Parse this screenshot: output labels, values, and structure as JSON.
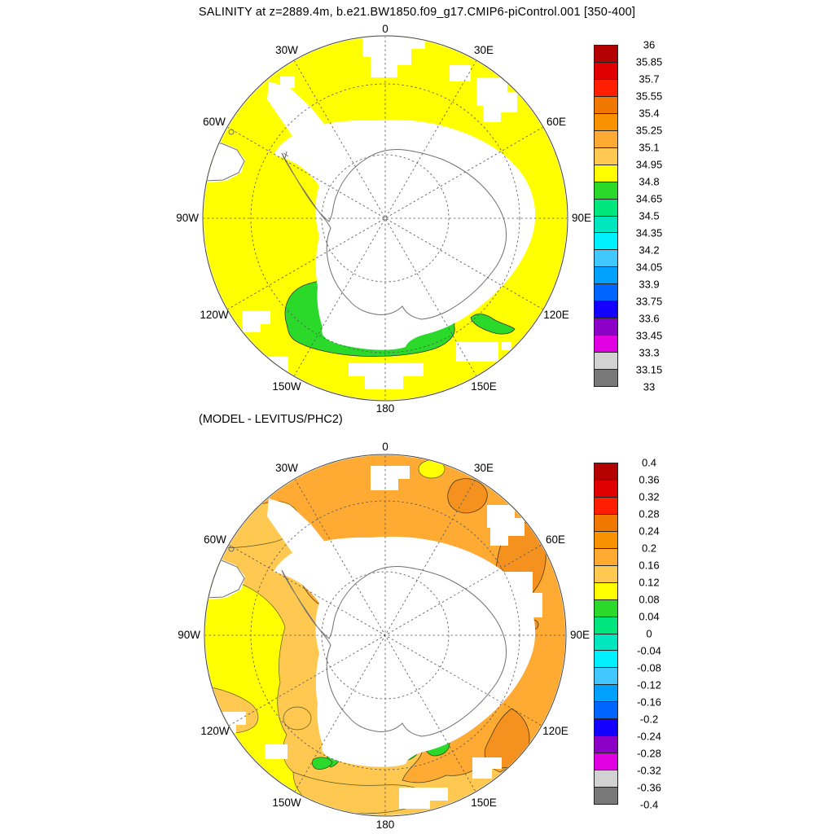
{
  "lon_labels": [
    "0",
    "30E",
    "60E",
    "90E",
    "120E",
    "150E",
    "180",
    "150W",
    "120W",
    "90W",
    "60W",
    "30W"
  ],
  "top_panel": {
    "title": "SALINITY at z=2889.4m, b.e21.BW1850.f09_g17.CMIP6-piControl.001 [350-400]",
    "colorbar": {
      "labels": [
        "36",
        "35.85",
        "35.7",
        "35.55",
        "35.4",
        "35.25",
        "35.1",
        "34.95",
        "34.8",
        "34.65",
        "34.5",
        "34.35",
        "34.2",
        "34.05",
        "33.9",
        "33.75",
        "33.6",
        "33.45",
        "33.3",
        "33.15",
        "33"
      ],
      "colors": [
        "#B40000",
        "#E10000",
        "#FF1E00",
        "#F07800",
        "#FA9100",
        "#FFAA32",
        "#FFC850",
        "#FFFF00",
        "#2BD92B",
        "#00E67D",
        "#00E6BE",
        "#00F0FF",
        "#41C8FF",
        "#00A0FF",
        "#0064FF",
        "#1400FF",
        "#8C00C8",
        "#E100E1",
        "#D2D2D2",
        "#787878"
      ]
    }
  },
  "bottom_panel": {
    "subtitle": "(MODEL - LEVITUS/PHC2)",
    "colorbar": {
      "labels": [
        "0.4",
        "0.36",
        "0.32",
        "0.28",
        "0.24",
        "0.2",
        "0.16",
        "0.12",
        "0.08",
        "0.04",
        "0",
        "-0.04",
        "-0.08",
        "-0.12",
        "-0.16",
        "-0.2",
        "-0.24",
        "-0.28",
        "-0.32",
        "-0.36",
        "-0.4"
      ],
      "colors": [
        "#B40000",
        "#E10000",
        "#FF1E00",
        "#F07800",
        "#FA9100",
        "#FFAA32",
        "#FFC850",
        "#FFFF00",
        "#2BD92B",
        "#00E67D",
        "#00E6BE",
        "#00F0FF",
        "#41C8FF",
        "#00A0FF",
        "#0064FF",
        "#1400FF",
        "#8C00C8",
        "#E100E1",
        "#D2D2D2",
        "#787878"
      ]
    }
  },
  "palette": {
    "yellow": "#FFFF00",
    "green": "#2BD92B",
    "spring_green": "#00E67D",
    "orange": "#FFAA32",
    "light_orange": "#FFC850",
    "dark_orange": "#F5911E",
    "no_data": "#FFFFFF",
    "coast": "#707070",
    "graticule": "#555555",
    "map_edge": "#444444"
  },
  "chart_data": [
    {
      "type": "heatmap",
      "title": "SALINITY at z=2889.4m, b.e21.BW1850.f09_g17.CMIP6-piControl.001 [350-400]",
      "variable": "sea-water salinity at depth z=2889.4 m, model years 350-400 mean",
      "projection": "south polar stereographic, 0 longitude at top, east longitudes clockwise",
      "lon_gridline_interval_deg": 30,
      "lon_tick_labels": [
        "0",
        "30E",
        "60E",
        "90E",
        "120E",
        "150E",
        "180",
        "150W",
        "120W",
        "90W",
        "60W",
        "30W"
      ],
      "latitude_gridlines": "two dashed latitude circles plus dashed meridians every 30 degrees",
      "contour_levels_psu": [
        33,
        33.15,
        33.3,
        33.45,
        33.6,
        33.75,
        33.9,
        34.05,
        34.2,
        34.35,
        34.5,
        34.65,
        34.8,
        34.95,
        35.1,
        35.25,
        35.4,
        35.55,
        35.7,
        35.85,
        36
      ],
      "palette_high_to_low": [
        "#B40000",
        "#E10000",
        "#FF1E00",
        "#F07800",
        "#FA9100",
        "#FFAA32",
        "#FFC850",
        "#FFFF00",
        "#2BD92B",
        "#00E67D",
        "#00E6BE",
        "#00F0FF",
        "#41C8FF",
        "#00A0FF",
        "#0064FF",
        "#1400FF",
        "#8C00C8",
        "#E100E1",
        "#D2D2D2",
        "#787878"
      ],
      "legend_position": "right vertical colorbar",
      "field_regions": [
        {
          "region": "nearly the entire Southern Ocean shown",
          "value_band_psu": "34.8-34.95",
          "color": "yellow"
        },
        {
          "region": "Ross Sea / Amundsen sector near the coast (about 160W-170E) with a tail toward 120E",
          "value_band_psu": "34.65-34.8",
          "color": "green"
        },
        {
          "region": "Antarctica, continental shelves and sea floor shallower than 2889 m (blocky patches)",
          "value_band_psu": "no data",
          "color": "white"
        }
      ]
    },
    {
      "type": "heatmap",
      "title": "(MODEL - LEVITUS/PHC2)",
      "variable": "salinity bias at 2889.4 m: model minus Levitus/PHC2 climatology",
      "projection": "south polar stereographic, 0 longitude at top, east longitudes clockwise",
      "lon_gridline_interval_deg": 30,
      "lon_tick_labels": [
        "0",
        "30E",
        "60E",
        "90E",
        "120E",
        "150E",
        "180",
        "150W",
        "120W",
        "90W",
        "60W",
        "30W"
      ],
      "contour_levels_psu": [
        -0.4,
        -0.36,
        -0.32,
        -0.28,
        -0.24,
        -0.2,
        -0.16,
        -0.12,
        -0.08,
        -0.04,
        0,
        0.04,
        0.08,
        0.12,
        0.16,
        0.2,
        0.24,
        0.28,
        0.32,
        0.36,
        0.4
      ],
      "palette_high_to_low": [
        "#B40000",
        "#E10000",
        "#FF1E00",
        "#F07800",
        "#FA9100",
        "#FFAA32",
        "#FFC850",
        "#FFFF00",
        "#2BD92B",
        "#00E67D",
        "#00E6BE",
        "#00F0FF",
        "#41C8FF",
        "#00A0FF",
        "#0064FF",
        "#1400FF",
        "#8C00C8",
        "#E100E1",
        "#D2D2D2",
        "#787878"
      ],
      "legend_position": "right vertical colorbar",
      "field_regions": [
        {
          "region": "Atlantic and Indian sectors (30W through 120E), most of the basin interior",
          "value_band": "+0.16 to +0.20",
          "color": "orange"
        },
        {
          "region": "closed contour blobs near 30E, 60E and 120E-150E",
          "value_band": "+0.20 to +0.24",
          "color": "darker orange"
        },
        {
          "region": "northwest band near 30W-60W, outer southeast rim, ring patches in Pacific sector",
          "value_band": "+0.12 to +0.16",
          "color": "light orange"
        },
        {
          "region": "Pacific sector (60W-180) inner ocean",
          "value_band": "+0.08 to +0.12",
          "color": "yellow"
        },
        {
          "region": "patches in Ross / Amundsen seas near the coast",
          "value_band": "0.00 to +0.08",
          "color": "green, small spring-green core 0.00-0.04"
        },
        {
          "region": "Antarctica, shelves, blocky missing-data patches",
          "value_band": "no data",
          "color": "white"
        }
      ]
    }
  ]
}
